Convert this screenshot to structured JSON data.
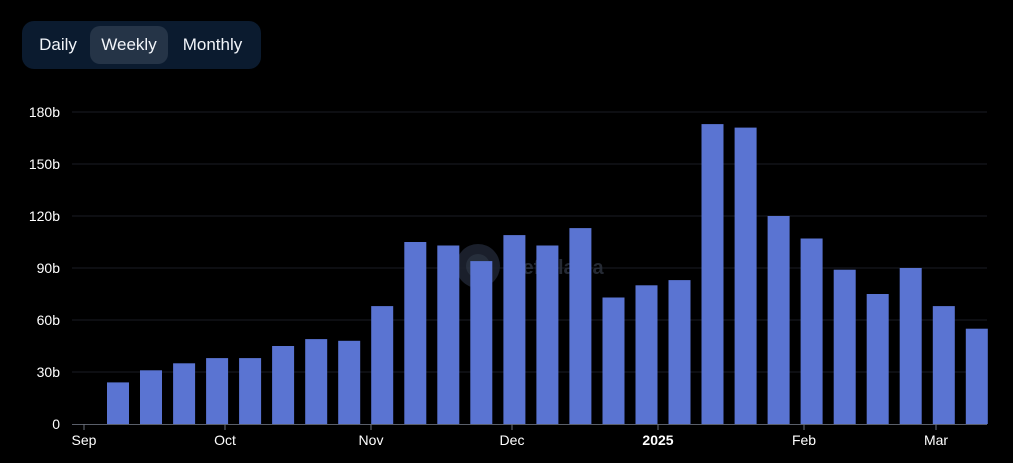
{
  "toggle": {
    "options": [
      "Daily",
      "Weekly",
      "Monthly"
    ],
    "selected": "Weekly"
  },
  "chart_data": {
    "type": "bar",
    "bar_color": "#5a74d2",
    "x_axis": {
      "tick_labels": [
        "Sep",
        "Oct",
        "Nov",
        "Dec",
        "2025",
        "Feb",
        "Mar"
      ],
      "bold_label": "2025"
    },
    "y_axis": {
      "ylim": [
        0,
        180
      ],
      "ticks": [
        0,
        30,
        60,
        90,
        120,
        150,
        180
      ],
      "tick_labels": [
        "0",
        "30b",
        "60b",
        "90b",
        "120b",
        "150b",
        "180b"
      ]
    },
    "grid": true,
    "values": [
      24,
      31,
      35,
      38,
      38,
      45,
      49,
      48,
      68,
      105,
      103,
      94,
      109,
      103,
      113,
      73,
      80,
      83,
      173,
      171,
      120,
      107,
      89,
      75,
      90,
      68,
      55
    ]
  }
}
